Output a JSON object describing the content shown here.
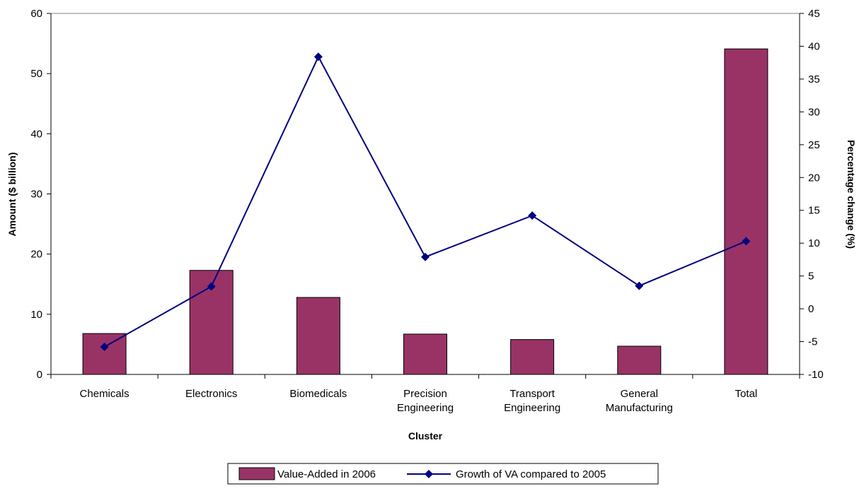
{
  "chart_data": {
    "type": "bar",
    "categories": [
      [
        "Chemicals"
      ],
      [
        "Electronics"
      ],
      [
        "Biomedicals"
      ],
      [
        "Precision",
        "Engineering"
      ],
      [
        "Transport",
        "Engineering"
      ],
      [
        "General",
        "Manufacturing"
      ],
      [
        "Total"
      ]
    ],
    "series": [
      {
        "name": "Value-Added in 2006",
        "type": "bar",
        "axis": "left",
        "color": "#993366",
        "values": [
          6.8,
          17.3,
          12.8,
          6.7,
          5.8,
          4.7,
          54.1
        ]
      },
      {
        "name": "Growth of VA  compared to 2005",
        "type": "line",
        "axis": "right",
        "color": "#000080",
        "marker": "diamond",
        "values": [
          -5.8,
          3.4,
          38.4,
          7.9,
          14.2,
          3.5,
          10.3
        ]
      }
    ],
    "xlabel": "Cluster",
    "ylabel": "Amount ($ billion)",
    "y2label": "Percentage change (%)",
    "ylim": [
      0,
      60
    ],
    "yticks": [
      0,
      10,
      20,
      30,
      40,
      50,
      60
    ],
    "y2lim": [
      -10,
      45
    ],
    "y2ticks": [
      -10,
      -5,
      0,
      5,
      10,
      15,
      20,
      25,
      30,
      35,
      40,
      45
    ],
    "grid": false,
    "legend_position": "bottom"
  }
}
